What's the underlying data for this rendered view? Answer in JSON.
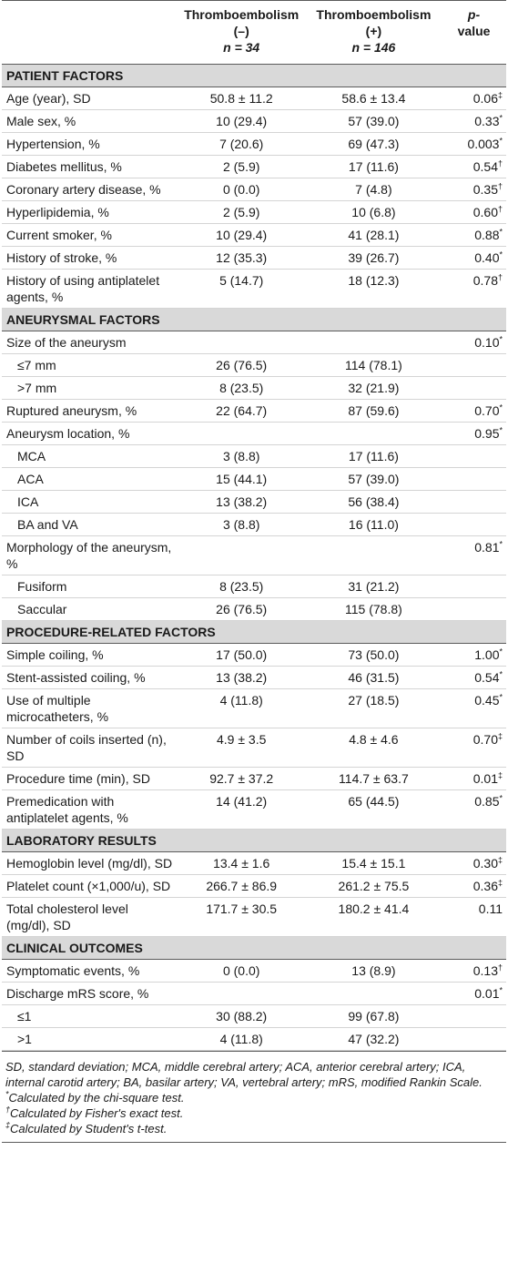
{
  "headers": {
    "col1": "",
    "col2_line1": "Thromboembolism",
    "col2_line2": "(–)",
    "col2_n": "n = 34",
    "col3_line1": "Thromboembolism",
    "col3_line2": "(+)",
    "col3_n": "n = 146",
    "col4_line1": "p-",
    "col4_line2": "value"
  },
  "sections": [
    {
      "title": "PATIENT FACTORS",
      "rows": [
        {
          "label": "Age (year), SD",
          "neg": "50.8 ± 11.2",
          "pos": "58.6 ± 13.4",
          "p": "0.06",
          "mark": "‡",
          "indent": false
        },
        {
          "label": "Male sex, %",
          "neg": "10 (29.4)",
          "pos": "57 (39.0)",
          "p": "0.33",
          "mark": "*",
          "indent": false
        },
        {
          "label": "Hypertension, %",
          "neg": "7 (20.6)",
          "pos": "69 (47.3)",
          "p": "0.003",
          "mark": "*",
          "indent": false
        },
        {
          "label": "Diabetes mellitus, %",
          "neg": "2 (5.9)",
          "pos": "17 (11.6)",
          "p": "0.54",
          "mark": "†",
          "indent": false
        },
        {
          "label": "Coronary artery disease, %",
          "neg": "0 (0.0)",
          "pos": "7 (4.8)",
          "p": "0.35",
          "mark": "†",
          "indent": false
        },
        {
          "label": "Hyperlipidemia, %",
          "neg": "2 (5.9)",
          "pos": "10 (6.8)",
          "p": "0.60",
          "mark": "†",
          "indent": false
        },
        {
          "label": "Current smoker, %",
          "neg": "10 (29.4)",
          "pos": "41 (28.1)",
          "p": "0.88",
          "mark": "*",
          "indent": false
        },
        {
          "label": "History of stroke, %",
          "neg": "12 (35.3)",
          "pos": "39 (26.7)",
          "p": "0.40",
          "mark": "*",
          "indent": false
        },
        {
          "label": "History of using antiplatelet agents, %",
          "neg": "5 (14.7)",
          "pos": "18 (12.3)",
          "p": "0.78",
          "mark": "†",
          "indent": false
        }
      ]
    },
    {
      "title": "ANEURYSMAL FACTORS",
      "rows": [
        {
          "label": "Size of the aneurysm",
          "neg": "",
          "pos": "",
          "p": "0.10",
          "mark": "*",
          "indent": false
        },
        {
          "label": "≤7 mm",
          "neg": "26 (76.5)",
          "pos": "114 (78.1)",
          "p": "",
          "mark": "",
          "indent": true
        },
        {
          "label": ">7 mm",
          "neg": "8 (23.5)",
          "pos": "32 (21.9)",
          "p": "",
          "mark": "",
          "indent": true
        },
        {
          "label": "Ruptured aneurysm, %",
          "neg": "22 (64.7)",
          "pos": "87 (59.6)",
          "p": "0.70",
          "mark": "*",
          "indent": false
        },
        {
          "label": "Aneurysm location, %",
          "neg": "",
          "pos": "",
          "p": "0.95",
          "mark": "*",
          "indent": false
        },
        {
          "label": "MCA",
          "neg": "3 (8.8)",
          "pos": "17 (11.6)",
          "p": "",
          "mark": "",
          "indent": true
        },
        {
          "label": "ACA",
          "neg": "15 (44.1)",
          "pos": "57 (39.0)",
          "p": "",
          "mark": "",
          "indent": true
        },
        {
          "label": "ICA",
          "neg": "13 (38.2)",
          "pos": "56 (38.4)",
          "p": "",
          "mark": "",
          "indent": true
        },
        {
          "label": "BA and VA",
          "neg": "3 (8.8)",
          "pos": "16 (11.0)",
          "p": "",
          "mark": "",
          "indent": true
        },
        {
          "label": "Morphology of the aneurysm, %",
          "neg": "",
          "pos": "",
          "p": "0.81",
          "mark": "*",
          "indent": false
        },
        {
          "label": "Fusiform",
          "neg": "8 (23.5)",
          "pos": "31 (21.2)",
          "p": "",
          "mark": "",
          "indent": true
        },
        {
          "label": "Saccular",
          "neg": "26 (76.5)",
          "pos": "115 (78.8)",
          "p": "",
          "mark": "",
          "indent": true
        }
      ]
    },
    {
      "title": "PROCEDURE-RELATED FACTORS",
      "rows": [
        {
          "label": "Simple coiling, %",
          "neg": "17 (50.0)",
          "pos": "73 (50.0)",
          "p": "1.00",
          "mark": "*",
          "indent": false
        },
        {
          "label": "Stent-assisted coiling, %",
          "neg": "13 (38.2)",
          "pos": "46 (31.5)",
          "p": "0.54",
          "mark": "*",
          "indent": false
        },
        {
          "label": "Use of multiple microcatheters, %",
          "neg": "4 (11.8)",
          "pos": "27 (18.5)",
          "p": "0.45",
          "mark": "*",
          "indent": false
        },
        {
          "label": "Number of coils inserted (n), SD",
          "neg": "4.9 ± 3.5",
          "pos": "4.8 ± 4.6",
          "p": "0.70",
          "mark": "‡",
          "indent": false
        },
        {
          "label": "Procedure time (min), SD",
          "neg": "92.7 ± 37.2",
          "pos": "114.7 ± 63.7",
          "p": "0.01",
          "mark": "‡",
          "indent": false
        },
        {
          "label": "Premedication with antiplatelet agents, %",
          "neg": "14 (41.2)",
          "pos": "65 (44.5)",
          "p": "0.85",
          "mark": "*",
          "indent": false
        }
      ]
    },
    {
      "title": "LABORATORY RESULTS",
      "rows": [
        {
          "label": "Hemoglobin level (mg/dl), SD",
          "neg": "13.4 ± 1.6",
          "pos": "15.4 ± 15.1",
          "p": "0.30",
          "mark": "‡",
          "indent": false
        },
        {
          "label": "Platelet count (×1,000/u), SD",
          "neg": "266.7 ± 86.9",
          "pos": "261.2 ± 75.5",
          "p": "0.36",
          "mark": "‡",
          "indent": false
        },
        {
          "label": "Total cholesterol level (mg/dl), SD",
          "neg": "171.7 ± 30.5",
          "pos": "180.2 ± 41.4",
          "p": "0.11",
          "mark": "",
          "indent": false
        }
      ]
    },
    {
      "title": "CLINICAL OUTCOMES",
      "rows": [
        {
          "label": "Symptomatic events, %",
          "neg": "0 (0.0)",
          "pos": "13 (8.9)",
          "p": "0.13",
          "mark": "†",
          "indent": false
        },
        {
          "label": "Discharge mRS score, %",
          "neg": "",
          "pos": "",
          "p": "0.01",
          "mark": "*",
          "indent": false
        },
        {
          "label": "≤1",
          "neg": "30 (88.2)",
          "pos": "99 (67.8)",
          "p": "",
          "mark": "",
          "indent": true
        },
        {
          "label": ">1",
          "neg": "4 (11.8)",
          "pos": "47 (32.2)",
          "p": "",
          "mark": "",
          "indent": true
        }
      ]
    }
  ],
  "footnotes": {
    "abbrev": "SD, standard deviation; MCA, middle cerebral artery; ACA, anterior cerebral artery; ICA, internal carotid artery; BA, basilar artery; VA, vertebral artery; mRS, modified Rankin Scale.",
    "star_mark": "*",
    "star_text": "Calculated by the chi-square test.",
    "dagger_mark": "†",
    "dagger_text": "Calculated by Fisher's exact test.",
    "ddagger_mark": "‡",
    "ddagger_text": "Calculated by Student's t-test."
  }
}
